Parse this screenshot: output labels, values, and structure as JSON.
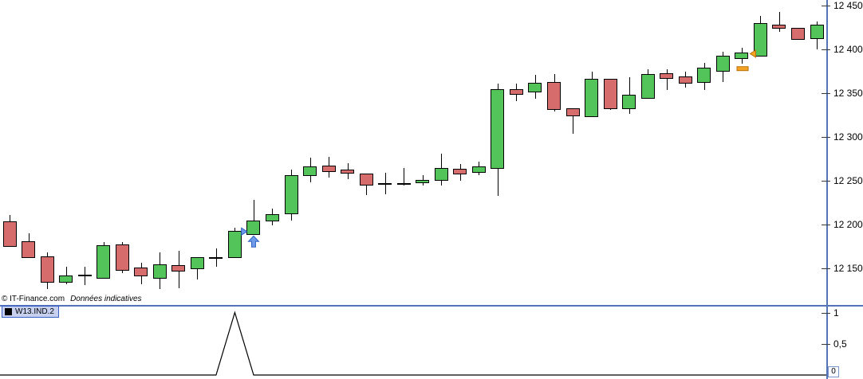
{
  "footer": {
    "copyright": "© IT-Finance.com",
    "note": "Données indicatives"
  },
  "indicator_label": {
    "name": "W13.IND.2"
  },
  "colors": {
    "up": "#53c45a",
    "down": "#d66c6c",
    "doji": "#000000",
    "wick": "#000000",
    "candle_border": "#000000",
    "axis": "#5574b8",
    "tick_dash": "#3a3a3a",
    "blue_marker": "#6f9ae8",
    "blue_marker_border": "#2f62c4",
    "orange_marker": "#f4a224",
    "orange_marker_border": "#b97106",
    "indicator_line": "#000000",
    "label_bg": "#c7d1ef",
    "label_border": "#3a5fc5"
  },
  "chart_data": {
    "type": "candlestick",
    "title": "",
    "panels": [
      {
        "name": "price",
        "type": "candlestick",
        "grid": false,
        "legend_position": "none",
        "ylim": [
          12120,
          12455
        ],
        "y_ticks": [
          {
            "value": 12450,
            "label": "12 450"
          },
          {
            "value": 12400,
            "label": "12 400"
          },
          {
            "value": 12350,
            "label": "12 350"
          },
          {
            "value": 12300,
            "label": "12 300"
          },
          {
            "value": 12250,
            "label": "12 250"
          },
          {
            "value": 12200,
            "label": "12 200"
          },
          {
            "value": 12150,
            "label": "12 150"
          }
        ],
        "candles_format": "[open, high, low, close]",
        "candles": [
          [
            12204,
            12211,
            12175,
            12176
          ],
          [
            12181,
            12190,
            12162,
            12163
          ],
          [
            12164,
            12168,
            12126,
            12135
          ],
          [
            12135,
            12152,
            12132,
            12142
          ],
          [
            12142,
            12152,
            12131,
            12142
          ],
          [
            12139,
            12180,
            12138,
            12176
          ],
          [
            12177,
            12180,
            12145,
            12148
          ],
          [
            12151,
            12156,
            12132,
            12142
          ],
          [
            12140,
            12168,
            12126,
            12155
          ],
          [
            12154,
            12170,
            12127,
            12148
          ],
          [
            12150,
            12163,
            12137,
            12163
          ],
          [
            12162,
            12173,
            12152,
            12162
          ],
          [
            12163,
            12196,
            12162,
            12193
          ],
          [
            12190,
            12228,
            12190,
            12205
          ],
          [
            12205,
            12218,
            12199,
            12212
          ],
          [
            12212,
            12263,
            12205,
            12256
          ],
          [
            12256,
            12276,
            12248,
            12266
          ],
          [
            12267,
            12277,
            12254,
            12261
          ],
          [
            12263,
            12270,
            12252,
            12259
          ],
          [
            12258,
            12258,
            12234,
            12245
          ],
          [
            12246,
            12259,
            12235,
            12246
          ],
          [
            12246,
            12265,
            12245,
            12246
          ],
          [
            12248,
            12256,
            12245,
            12251
          ],
          [
            12251,
            12281,
            12245,
            12265
          ],
          [
            12264,
            12269,
            12250,
            12259
          ],
          [
            12260,
            12272,
            12256,
            12266
          ],
          [
            12265,
            12361,
            12233,
            12355
          ],
          [
            12355,
            12361,
            12341,
            12350
          ],
          [
            12352,
            12371,
            12344,
            12362
          ],
          [
            12363,
            12372,
            12329,
            12332
          ],
          [
            12333,
            12333,
            12304,
            12325
          ],
          [
            12323,
            12375,
            12323,
            12366
          ],
          [
            12366,
            12366,
            12331,
            12332
          ],
          [
            12333,
            12368,
            12326,
            12348
          ],
          [
            12345,
            12377,
            12345,
            12372
          ],
          [
            12373,
            12377,
            12354,
            12368
          ],
          [
            12369,
            12375,
            12356,
            12362
          ],
          [
            12363,
            12385,
            12354,
            12379
          ],
          [
            12376,
            12397,
            12363,
            12393
          ],
          [
            12390,
            12402,
            12384,
            12396
          ],
          [
            12393,
            12438,
            12393,
            12430
          ],
          [
            12428,
            12443,
            12420,
            12424
          ],
          [
            12425,
            12425,
            12411,
            12412
          ],
          [
            12413,
            12432,
            12400,
            12428
          ]
        ],
        "markers": [
          {
            "shape": "triangle-right",
            "color": "blue",
            "index": 12.5,
            "price": 12192
          },
          {
            "shape": "arrow-up",
            "color": "blue",
            "index": 13,
            "price": 12187
          },
          {
            "shape": "triangle-left",
            "color": "orange",
            "index": 39.6,
            "price": 12395
          },
          {
            "shape": "dash",
            "color": "orange",
            "index": 39.05,
            "price": 12378
          }
        ]
      },
      {
        "name": "W13.IND.2",
        "type": "line",
        "grid": false,
        "ylim": [
          0,
          1
        ],
        "y_ticks": [
          {
            "value": 1,
            "label": "1"
          },
          {
            "value": 0.5,
            "label": "0,5"
          }
        ],
        "values": [
          0,
          0,
          0,
          0,
          0,
          0,
          0,
          0,
          0,
          0,
          0,
          0,
          1,
          0,
          0,
          0,
          0,
          0,
          0,
          0,
          0,
          0,
          0,
          0,
          0,
          0,
          0,
          0,
          0,
          0,
          0,
          0,
          0,
          0,
          0,
          0,
          0,
          0,
          0,
          0,
          0,
          0,
          0,
          0
        ],
        "last_value": "0"
      }
    ]
  }
}
